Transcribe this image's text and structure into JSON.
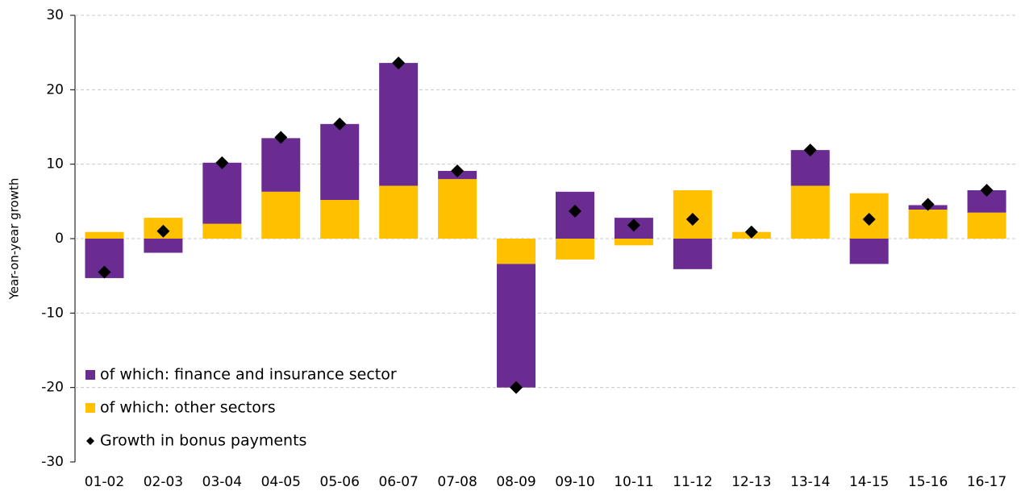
{
  "chart_data": {
    "type": "bar",
    "stacked": true,
    "y_label": "Year-on-year growth",
    "categories": [
      "01-02",
      "02-03",
      "03-04",
      "04-05",
      "05-06",
      "06-07",
      "07-08",
      "08-09",
      "09-10",
      "10-11",
      "11-12",
      "12-13",
      "13-14",
      "14-15",
      "15-16",
      "16-17"
    ],
    "series": [
      {
        "name": "of which: finance and insurance sector",
        "color": "#6b2c91",
        "values": [
          -5.3,
          -1.9,
          8.2,
          7.2,
          10.2,
          16.5,
          1.1,
          -16.6,
          6.3,
          2.8,
          -4.1,
          0,
          4.8,
          -3.4,
          0.6,
          3.0
        ]
      },
      {
        "name": "of which: other sectors",
        "color": "#ffc000",
        "values": [
          0.9,
          2.8,
          2.0,
          6.3,
          5.2,
          7.1,
          8.0,
          -3.4,
          -2.8,
          -0.9,
          6.5,
          0.9,
          7.1,
          6.1,
          3.9,
          3.5
        ]
      },
      {
        "name": "Growth in bonus payments",
        "color": "#000000",
        "type": "scatter",
        "marker": "diamond",
        "values": [
          -4.5,
          1.0,
          10.2,
          13.6,
          15.4,
          23.6,
          9.1,
          -20.0,
          3.7,
          1.8,
          2.6,
          0.9,
          11.9,
          2.6,
          4.6,
          6.5
        ]
      }
    ],
    "ylim": [
      -30,
      30
    ],
    "yticks": [
      -30,
      -20,
      -10,
      0,
      10,
      20,
      30
    ],
    "grid": true,
    "legend": "lower-left"
  }
}
